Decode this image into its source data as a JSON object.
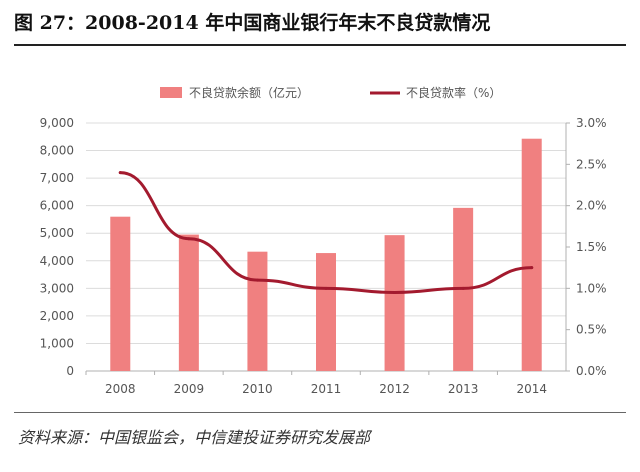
{
  "title": "图 27：2008-2014 年中国商业银行年末不良贷款情况",
  "source": "资料来源：中国银监会，中信建投证券研究发展部",
  "chart_data": {
    "type": "bar",
    "categories": [
      "2008",
      "2009",
      "2010",
      "2011",
      "2012",
      "2013",
      "2014"
    ],
    "series": [
      {
        "name": "不良贷款余额（亿元）",
        "type": "bar",
        "axis": "left",
        "color": "#f08080",
        "values": [
          5600,
          4950,
          4330,
          4280,
          4930,
          5920,
          8430
        ]
      },
      {
        "name": "不良贷款率（%）",
        "type": "line",
        "axis": "right",
        "color": "#a31a2e",
        "values": [
          2.4,
          1.6,
          1.1,
          1.0,
          0.95,
          1.0,
          1.25
        ]
      }
    ],
    "y_left": {
      "min": 0,
      "max": 9000,
      "ticks": [
        "0",
        "1,000",
        "2,000",
        "3,000",
        "4,000",
        "5,000",
        "6,000",
        "7,000",
        "8,000",
        "9,000"
      ]
    },
    "y_right": {
      "min": 0,
      "max": 3.0,
      "ticks": [
        "0.0%",
        "0.5%",
        "1.0%",
        "1.5%",
        "2.0%",
        "2.5%",
        "3.0%"
      ]
    },
    "grid": true,
    "legend_position": "top"
  }
}
